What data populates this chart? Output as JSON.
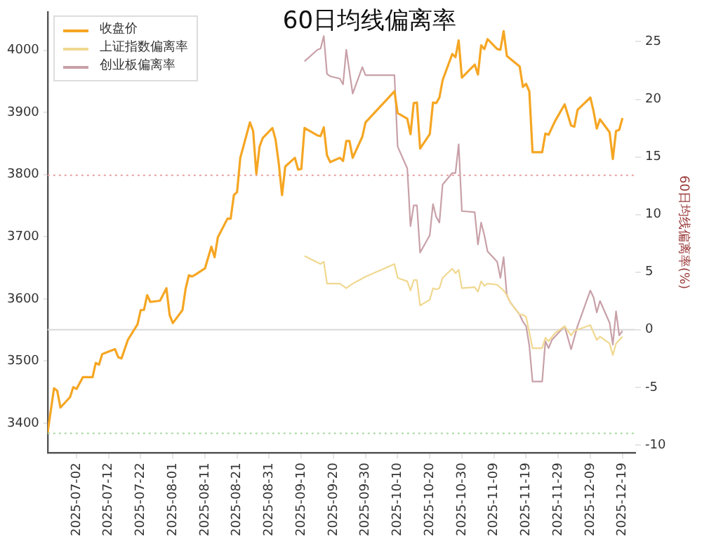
{
  "chart_data": {
    "type": "line",
    "title": "60日均线偏离率",
    "y2label": "60日均线偏离率(%)",
    "legend": "top left",
    "marker": "none",
    "grid": false,
    "xlim": [
      "2025-06-23",
      "2025-12-23"
    ],
    "xticks": [
      "2025-07-02",
      "2025-07-12",
      "2025-07-22",
      "2025-08-01",
      "2025-08-11",
      "2025-08-21",
      "2025-08-31",
      "2025-09-10",
      "2025-09-20",
      "2025-09-30",
      "2025-10-10",
      "2025-10-20",
      "2025-10-30",
      "2025-11-09",
      "2025-11-19",
      "2025-11-29",
      "2025-12-09",
      "2025-12-19"
    ],
    "ylim": [
      3352,
      4062
    ],
    "yticks": [
      3400,
      3500,
      3600,
      3700,
      3800,
      3900,
      4000
    ],
    "y2lim": [
      -10.7,
      27.6
    ],
    "y2ticks": [
      -10,
      -5,
      0,
      5,
      10,
      15,
      20,
      25
    ],
    "ref_lines": [
      {
        "axis": "y2",
        "value": 13.4,
        "color": "#e8a0a0",
        "line_style": "dotted"
      },
      {
        "axis": "y2",
        "value": -9,
        "color": "#a8d8a0",
        "line_style": "dotted"
      },
      {
        "axis": "y2",
        "value": 0,
        "color": "#d8d8d8",
        "line_style": "solid"
      }
    ],
    "series": [
      {
        "name": "收盘价",
        "color": "#f5a623",
        "x": [
          "2025-06-23",
          "2025-06-25",
          "2025-06-26",
          "2025-06-27",
          "2025-06-30",
          "2025-07-01",
          "2025-07-02",
          "2025-07-04",
          "2025-07-07",
          "2025-07-08",
          "2025-07-09",
          "2025-07-10",
          "2025-07-11",
          "2025-07-14",
          "2025-07-15",
          "2025-07-16",
          "2025-07-18",
          "2025-07-21",
          "2025-07-22",
          "2025-07-23",
          "2025-07-24",
          "2025-07-25",
          "2025-07-28",
          "2025-07-29",
          "2025-07-30",
          "2025-07-31",
          "2025-08-01",
          "2025-08-04",
          "2025-08-05",
          "2025-08-06",
          "2025-08-07",
          "2025-08-08",
          "2025-08-11",
          "2025-08-13",
          "2025-08-14",
          "2025-08-15",
          "2025-08-18",
          "2025-08-19",
          "2025-08-20",
          "2025-08-21",
          "2025-08-22",
          "2025-08-25",
          "2025-08-26",
          "2025-08-27",
          "2025-08-28",
          "2025-08-29",
          "2025-09-01",
          "2025-09-02",
          "2025-09-03",
          "2025-09-04",
          "2025-09-05",
          "2025-09-08",
          "2025-09-09",
          "2025-09-10",
          "2025-09-11",
          "2025-09-15",
          "2025-09-16",
          "2025-09-17",
          "2025-09-18",
          "2025-09-19",
          "2025-09-22",
          "2025-09-23",
          "2025-09-24",
          "2025-09-25",
          "2025-09-26",
          "2025-09-29",
          "2025-09-30",
          "2025-10-09",
          "2025-10-10",
          "2025-10-13",
          "2025-10-14",
          "2025-10-15",
          "2025-10-16",
          "2025-10-17",
          "2025-10-20",
          "2025-10-21",
          "2025-10-22",
          "2025-10-23",
          "2025-10-24",
          "2025-10-27",
          "2025-10-28",
          "2025-10-29",
          "2025-10-30",
          "2025-11-03",
          "2025-11-04",
          "2025-11-05",
          "2025-11-06",
          "2025-11-07",
          "2025-11-10",
          "2025-11-11",
          "2025-11-12",
          "2025-11-13",
          "2025-11-17",
          "2025-11-18",
          "2025-11-19",
          "2025-11-20",
          "2025-11-21",
          "2025-11-24",
          "2025-11-25",
          "2025-11-26",
          "2025-11-28",
          "2025-12-01",
          "2025-12-03",
          "2025-12-04",
          "2025-12-05",
          "2025-12-09",
          "2025-12-10",
          "2025-12-11",
          "2025-12-12",
          "2025-12-15",
          "2025-12-16",
          "2025-12-17",
          "2025-12-18",
          "2025-12-19"
        ],
        "values": [
          3385,
          3456,
          3452,
          3425,
          3442,
          3458,
          3455,
          3474,
          3474,
          3497,
          3494,
          3511,
          3513,
          3519,
          3506,
          3504,
          3534,
          3559,
          3582,
          3582,
          3606,
          3595,
          3597,
          3607,
          3617,
          3574,
          3561,
          3582,
          3617,
          3638,
          3636,
          3639,
          3649,
          3684,
          3667,
          3699,
          3729,
          3729,
          3767,
          3772,
          3827,
          3884,
          3870,
          3801,
          3845,
          3859,
          3875,
          3856,
          3817,
          3767,
          3813,
          3827,
          3808,
          3809,
          3875,
          3863,
          3862,
          3876,
          3831,
          3820,
          3827,
          3822,
          3854,
          3854,
          3827,
          3861,
          3884,
          3934,
          3899,
          3890,
          3865,
          3915,
          3916,
          3842,
          3865,
          3916,
          3915,
          3924,
          3952,
          3994,
          3989,
          4016,
          3956,
          3977,
          3961,
          4008,
          4002,
          4018,
          4002,
          4001,
          4031,
          3991,
          3974,
          3941,
          3946,
          3934,
          3836,
          3836,
          3866,
          3864,
          3886,
          3913,
          3879,
          3877,
          3904,
          3924,
          3902,
          3874,
          3889,
          3868,
          3825,
          3870,
          3872,
          3891
        ]
      },
      {
        "name": "上证指数偏离率",
        "color": "#f0d890",
        "axis": "y2",
        "x": [
          "2025-09-11",
          "2025-09-16",
          "2025-09-17",
          "2025-09-18",
          "2025-09-22",
          "2025-09-23",
          "2025-09-24",
          "2025-09-26",
          "2025-09-30",
          "2025-10-09",
          "2025-10-10",
          "2025-10-13",
          "2025-10-14",
          "2025-10-15",
          "2025-10-16",
          "2025-10-17",
          "2025-10-20",
          "2025-10-21",
          "2025-10-22",
          "2025-10-23",
          "2025-10-24",
          "2025-10-27",
          "2025-10-28",
          "2025-10-29",
          "2025-10-30",
          "2025-11-03",
          "2025-11-04",
          "2025-11-05",
          "2025-11-06",
          "2025-11-07",
          "2025-11-10",
          "2025-11-12",
          "2025-11-13",
          "2025-11-14",
          "2025-11-17",
          "2025-11-18",
          "2025-11-19",
          "2025-11-21",
          "2025-11-24",
          "2025-11-25",
          "2025-11-26",
          "2025-11-28",
          "2025-12-01",
          "2025-12-03",
          "2025-12-04",
          "2025-12-09",
          "2025-12-11",
          "2025-12-12",
          "2025-12-15",
          "2025-12-16",
          "2025-12-17",
          "2025-12-18",
          "2025-12-19"
        ],
        "values": [
          6.4,
          5.7,
          5.9,
          4.0,
          4.0,
          3.8,
          3.6,
          4.0,
          4.6,
          5.7,
          4.5,
          4.2,
          3.4,
          4.3,
          4.3,
          2.1,
          2.6,
          3.6,
          3.5,
          3.6,
          4.5,
          5.3,
          4.9,
          5.2,
          3.6,
          3.7,
          3.3,
          4.2,
          3.8,
          4.0,
          3.9,
          3.4,
          3.0,
          2.4,
          1.3,
          1.3,
          1.1,
          -1.6,
          -1.6,
          -0.7,
          -1.0,
          -0.3,
          0.3,
          -0.5,
          -0.1,
          0.4,
          -0.9,
          -0.6,
          -1.2,
          -2.2,
          -1.2,
          -0.9,
          -0.6
        ]
      },
      {
        "name": "创业板偏离率",
        "color": "#c8a0a8",
        "axis": "y2",
        "x": [
          "2025-09-11",
          "2025-09-15",
          "2025-09-16",
          "2025-09-17",
          "2025-09-18",
          "2025-09-19",
          "2025-09-22",
          "2025-09-23",
          "2025-09-24",
          "2025-09-26",
          "2025-09-29",
          "2025-09-30",
          "2025-10-09",
          "2025-10-10",
          "2025-10-13",
          "2025-10-14",
          "2025-10-15",
          "2025-10-16",
          "2025-10-17",
          "2025-10-20",
          "2025-10-21",
          "2025-10-22",
          "2025-10-23",
          "2025-10-24",
          "2025-10-27",
          "2025-10-28",
          "2025-10-29",
          "2025-10-30",
          "2025-11-03",
          "2025-11-04",
          "2025-11-05",
          "2025-11-06",
          "2025-11-07",
          "2025-11-10",
          "2025-11-11",
          "2025-11-12",
          "2025-11-13",
          "2025-11-14",
          "2025-11-17",
          "2025-11-18",
          "2025-11-19",
          "2025-11-20",
          "2025-11-21",
          "2025-11-24",
          "2025-11-25",
          "2025-11-26",
          "2025-11-27",
          "2025-12-01",
          "2025-12-03",
          "2025-12-05",
          "2025-12-09",
          "2025-12-10",
          "2025-12-11",
          "2025-12-12",
          "2025-12-15",
          "2025-12-16",
          "2025-12-17",
          "2025-12-18",
          "2025-12-19"
        ],
        "values": [
          23.3,
          24.3,
          24.4,
          25.5,
          22.2,
          22.0,
          21.8,
          21.3,
          24.3,
          20.5,
          22.8,
          22.1,
          22.1,
          15.9,
          14.0,
          9.0,
          10.8,
          10.8,
          6.7,
          8.2,
          10.9,
          9.8,
          9.3,
          12.6,
          13.6,
          13.6,
          16.1,
          10.3,
          10.2,
          7.4,
          9.3,
          8.2,
          6.8,
          5.9,
          4.5,
          6.3,
          3.0,
          2.4,
          1.3,
          0.7,
          0.3,
          -1.4,
          -4.5,
          -4.5,
          -1.0,
          -1.6,
          -0.9,
          0.3,
          -1.7,
          0.3,
          3.4,
          2.8,
          1.5,
          2.5,
          0.6,
          -1.3,
          1.6,
          -0.5,
          -0.1
        ]
      }
    ]
  }
}
